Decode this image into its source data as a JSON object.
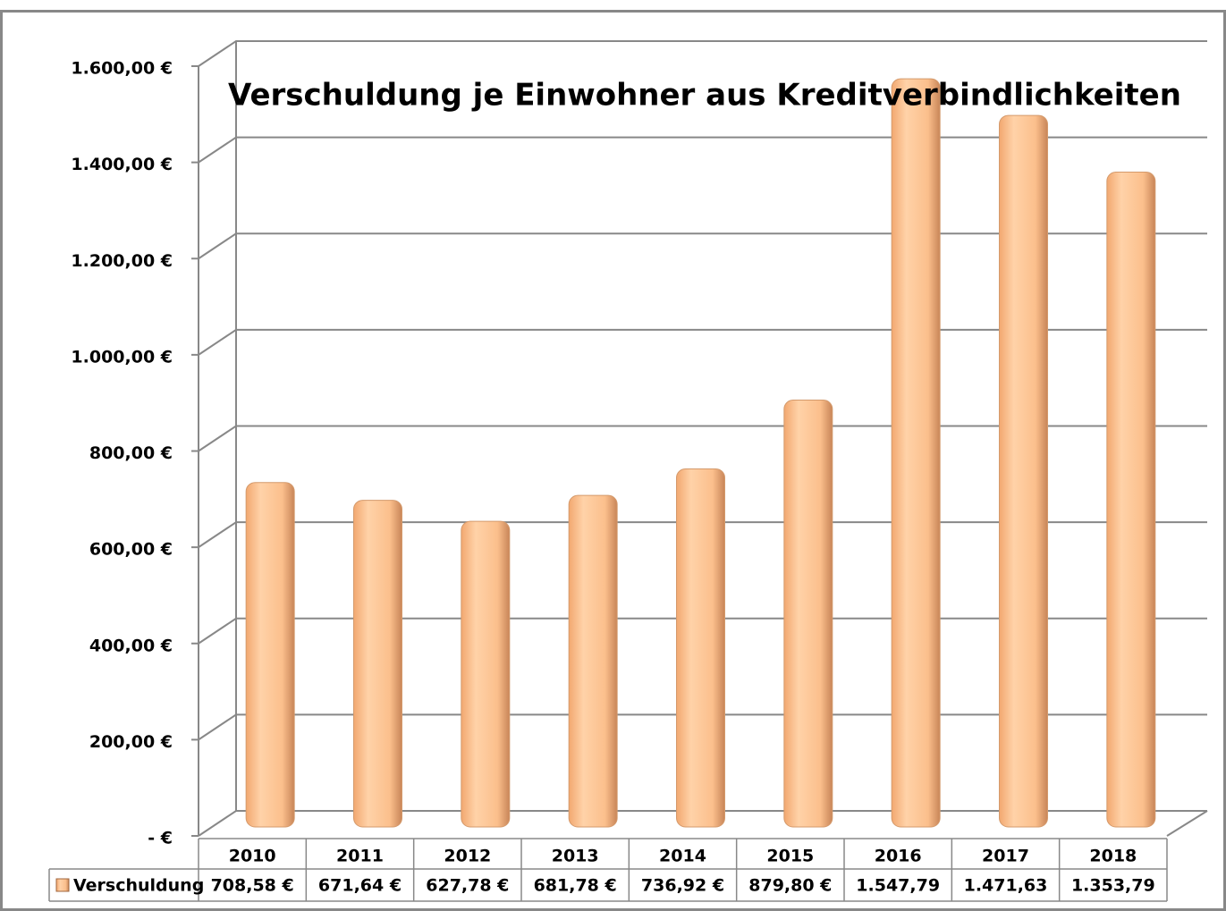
{
  "chart_data": {
    "type": "bar3d",
    "title": "Verschuldung je Einwohner aus Kreditverbindlichkeiten",
    "categories": [
      "2010",
      "2011",
      "2012",
      "2013",
      "2014",
      "2015",
      "2016",
      "2017",
      "2018"
    ],
    "series": [
      {
        "name": "Verschuldung",
        "color": "#fbbf8c",
        "values": [
          708.58,
          671.64,
          627.78,
          681.78,
          736.92,
          879.8,
          1547.79,
          1471.63,
          1353.79
        ],
        "value_labels": [
          "708,58 €",
          "671,64 €",
          "627,78 €",
          "681,78 €",
          "736,92 €",
          "879,80 €",
          "1.547,79",
          "1.471,63",
          "1.353,79"
        ]
      }
    ],
    "ylim": [
      0,
      1600
    ],
    "yticks": [
      {
        "value": 0,
        "label": "-  €"
      },
      {
        "value": 200,
        "label": "200,00 €"
      },
      {
        "value": 400,
        "label": "400,00 €"
      },
      {
        "value": 600,
        "label": "600,00 €"
      },
      {
        "value": 800,
        "label": "800,00 €"
      },
      {
        "value": 1000,
        "label": "1.000,00 €"
      },
      {
        "value": 1200,
        "label": "1.200,00 €"
      },
      {
        "value": 1400,
        "label": "1.400,00 €"
      },
      {
        "value": 1600,
        "label": "1.600,00 €"
      }
    ],
    "grid": true,
    "data_table": true
  }
}
